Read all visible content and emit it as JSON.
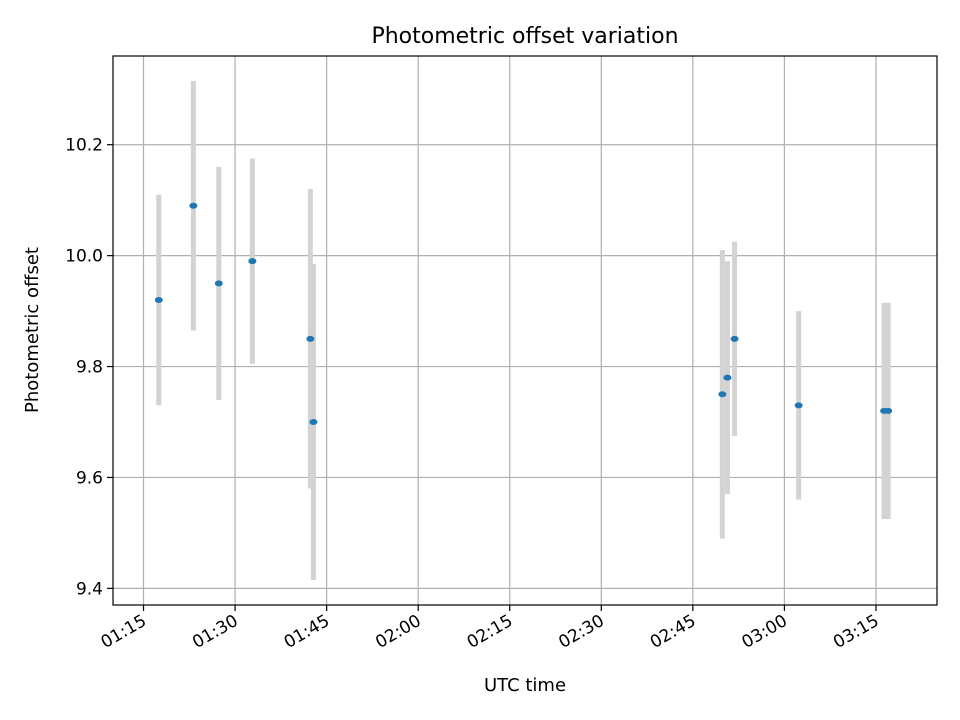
{
  "chart_data": {
    "type": "scatter",
    "title": "Photometric offset variation",
    "xlabel": "UTC time",
    "ylabel": "Photometric offset",
    "xlim": [
      "01:10",
      "03:25"
    ],
    "ylim": [
      9.37,
      10.36
    ],
    "xticks": [
      "01:15",
      "01:30",
      "01:45",
      "02:00",
      "02:15",
      "02:30",
      "02:45",
      "03:00",
      "03:15"
    ],
    "yticks": [
      9.4,
      9.6,
      9.8,
      10.0,
      10.2
    ],
    "grid": true,
    "legend": "none",
    "colors": {
      "point": "#1f77b4",
      "errorbar": "#d3d3d3",
      "grid": "#b0b0b0"
    },
    "points": [
      {
        "x": "01:17:30",
        "y": 9.92,
        "yerr": 0.19
      },
      {
        "x": "01:23:10",
        "y": 10.09,
        "yerr": 0.225
      },
      {
        "x": "01:27:20",
        "y": 9.95,
        "yerr": 0.21
      },
      {
        "x": "01:32:50",
        "y": 9.99,
        "yerr": 0.185
      },
      {
        "x": "01:42:20",
        "y": 9.85,
        "yerr": 0.27
      },
      {
        "x": "01:42:50",
        "y": 9.7,
        "yerr": 0.285
      },
      {
        "x": "02:49:50",
        "y": 9.75,
        "yerr": 0.26
      },
      {
        "x": "02:50:40",
        "y": 9.78,
        "yerr": 0.21
      },
      {
        "x": "02:51:50",
        "y": 9.85,
        "yerr": 0.175
      },
      {
        "x": "03:02:20",
        "y": 9.73,
        "yerr": 0.17
      },
      {
        "x": "03:16:20",
        "y": 9.72,
        "yerr": 0.195
      },
      {
        "x": "03:17:00",
        "y": 9.72,
        "yerr": 0.195
      }
    ]
  }
}
